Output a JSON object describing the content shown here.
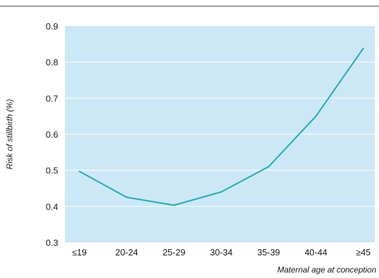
{
  "chart_data": {
    "type": "line",
    "categories": [
      "≤19",
      "20-24",
      "25-29",
      "30-34",
      "35-39",
      "40-44",
      "≥45"
    ],
    "series": [
      {
        "values": [
          0.497,
          0.425,
          0.403,
          0.44,
          0.51,
          0.65,
          0.838
        ]
      }
    ],
    "xlabel": "Maternal age at conception",
    "ylabel": "Risk of stillbirth (%)",
    "ylim": [
      0.3,
      0.9
    ],
    "yticks": [
      0.3,
      0.4,
      0.5,
      0.6,
      0.7,
      0.8,
      0.9
    ],
    "ytick_labels": [
      "0.3",
      "0.4",
      "0.5",
      "0.6",
      "0.7",
      "0.8",
      "0.9"
    ],
    "grid": true,
    "legend": "none"
  },
  "colors": {
    "plot_background": "#cce8f6",
    "line": "#1aabb4",
    "gridline": "#ffffff",
    "top_rule": "#333333"
  }
}
